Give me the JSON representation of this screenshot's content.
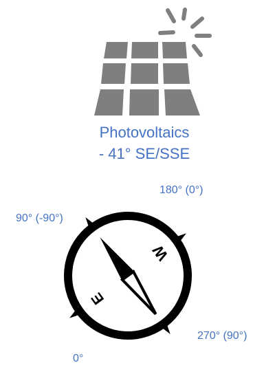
{
  "title": {
    "line1": "Photovoltaics",
    "line2": "- 41° SE/SSE"
  },
  "compass": {
    "labels": {
      "top": "180° (0°)",
      "left": "90° (-90°)",
      "right": "270° (90°)",
      "bottom": "0°"
    },
    "letters": {
      "east": "E",
      "west": "W"
    }
  },
  "icons": {
    "panel": "solar-panel-icon",
    "sun": "sun-icon",
    "compass": "compass-icon"
  },
  "colors": {
    "text": "#4472c4",
    "icon_gray": "#7f7f7f",
    "compass": "#000000"
  }
}
